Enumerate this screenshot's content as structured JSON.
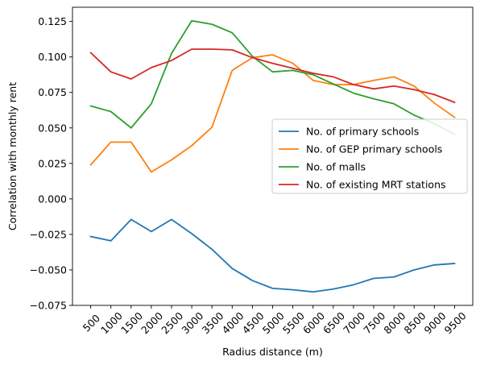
{
  "chart_data": {
    "type": "line",
    "xlabel": "Radius distance (m)",
    "ylabel": "Correlation with monthly rent",
    "x": [
      500,
      1000,
      1500,
      2000,
      2500,
      3000,
      3500,
      4000,
      4500,
      5000,
      5500,
      6000,
      6500,
      7000,
      7500,
      8000,
      8500,
      9000,
      9500
    ],
    "x_tick_labels": [
      "500",
      "1000",
      "1500",
      "2000",
      "2500",
      "3000",
      "3500",
      "4000",
      "4500",
      "5000",
      "5500",
      "6000",
      "6500",
      "7000",
      "7500",
      "8000",
      "8500",
      "9000",
      "9500"
    ],
    "y_ticks": [
      -0.075,
      -0.05,
      -0.025,
      0.0,
      0.025,
      0.05,
      0.075,
      0.1,
      0.125
    ],
    "y_tick_labels": [
      "−0.075",
      "−0.050",
      "−0.025",
      "0.000",
      "0.025",
      "0.050",
      "0.075",
      "0.100",
      "0.125"
    ],
    "ylim": [
      -0.075,
      0.135
    ],
    "grid": false,
    "legend_position": "center-right",
    "series": [
      {
        "name": "No. of primary schools",
        "color": "#1f77b4",
        "values": [
          -0.0265,
          -0.0295,
          -0.0145,
          -0.023,
          -0.0145,
          -0.0245,
          -0.0355,
          -0.049,
          -0.0575,
          -0.063,
          -0.064,
          -0.0655,
          -0.0635,
          -0.0605,
          -0.056,
          -0.055,
          -0.05,
          -0.0465,
          -0.0455
        ]
      },
      {
        "name": "No. of GEP primary schools",
        "color": "#ff7f0e",
        "values": [
          0.024,
          0.04,
          0.04,
          0.019,
          0.0275,
          0.0375,
          0.0505,
          0.0905,
          0.0995,
          0.1015,
          0.0955,
          0.0835,
          0.0805,
          0.0805,
          0.0835,
          0.086,
          0.0795,
          0.0675,
          0.0575
        ]
      },
      {
        "name": "No. of malls",
        "color": "#2ca02c",
        "values": [
          0.0655,
          0.0615,
          0.05,
          0.067,
          0.1025,
          0.1255,
          0.123,
          0.117,
          0.1005,
          0.0895,
          0.0905,
          0.0875,
          0.081,
          0.0745,
          0.0705,
          0.067,
          0.059,
          0.053,
          0.0455
        ]
      },
      {
        "name": "No. of existing MRT stations",
        "color": "#d62728",
        "values": [
          0.103,
          0.0895,
          0.0845,
          0.0925,
          0.0975,
          0.1055,
          0.1055,
          0.105,
          0.0995,
          0.0955,
          0.092,
          0.0885,
          0.086,
          0.0805,
          0.0775,
          0.0795,
          0.077,
          0.0735,
          0.068
        ]
      }
    ]
  }
}
